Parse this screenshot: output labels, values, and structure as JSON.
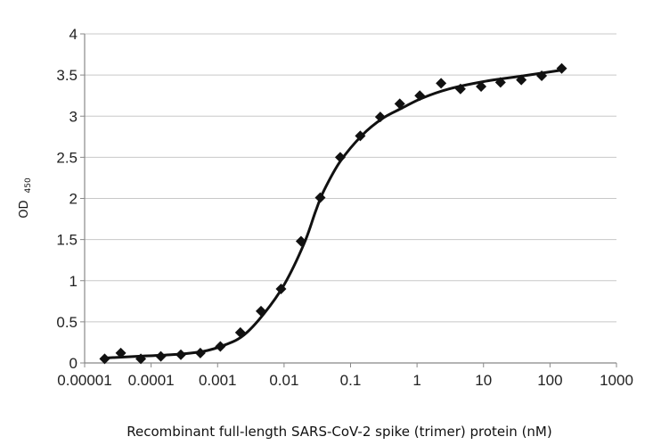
{
  "chart_data": {
    "type": "scatter",
    "title": "",
    "xlabel": "Recombinant full-length SARS-CoV-2 spike (trimer) protein (nM)",
    "ylabel": "OD",
    "ylabel_subscript": "450",
    "x_scale": "log",
    "xlim": [
      1e-05,
      1000
    ],
    "ylim": [
      0,
      4
    ],
    "x_ticks": [
      1e-05,
      0.0001,
      0.001,
      0.01,
      0.1,
      1,
      10,
      100,
      1000
    ],
    "x_tick_labels": [
      "0.00001",
      "0.0001",
      "0.001",
      "0.01",
      "0.1",
      "1",
      "10",
      "100",
      "1000"
    ],
    "y_ticks": [
      0,
      0.5,
      1,
      1.5,
      2,
      2.5,
      3,
      3.5,
      4
    ],
    "y_tick_labels": [
      "0",
      "0.5",
      "1",
      "1.5",
      "2",
      "2.5",
      "3",
      "3.5",
      "4"
    ],
    "grid": "horizontal",
    "marker": "diamond",
    "marker_color": "#111111",
    "curve_color": "#111111",
    "fit": "sigmoidal",
    "points": [
      {
        "x": 2e-05,
        "y": 0.05
      },
      {
        "x": 3.5e-05,
        "y": 0.12
      },
      {
        "x": 7e-05,
        "y": 0.05
      },
      {
        "x": 0.00014,
        "y": 0.08
      },
      {
        "x": 0.00028,
        "y": 0.1
      },
      {
        "x": 0.00055,
        "y": 0.12
      },
      {
        "x": 0.0011,
        "y": 0.2
      },
      {
        "x": 0.0022,
        "y": 0.37
      },
      {
        "x": 0.0045,
        "y": 0.63
      },
      {
        "x": 0.009,
        "y": 0.9
      },
      {
        "x": 0.018,
        "y": 1.48
      },
      {
        "x": 0.035,
        "y": 2.01
      },
      {
        "x": 0.07,
        "y": 2.5
      },
      {
        "x": 0.14,
        "y": 2.76
      },
      {
        "x": 0.28,
        "y": 2.99
      },
      {
        "x": 0.55,
        "y": 3.15
      },
      {
        "x": 1.1,
        "y": 3.25
      },
      {
        "x": 2.3,
        "y": 3.4
      },
      {
        "x": 4.5,
        "y": 3.33
      },
      {
        "x": 9.2,
        "y": 3.36
      },
      {
        "x": 18,
        "y": 3.41
      },
      {
        "x": 37,
        "y": 3.44
      },
      {
        "x": 75,
        "y": 3.49
      },
      {
        "x": 150,
        "y": 3.58
      }
    ],
    "curve": [
      {
        "x": 2e-05,
        "y": 0.06
      },
      {
        "x": 6e-05,
        "y": 0.08
      },
      {
        "x": 0.0002,
        "y": 0.1
      },
      {
        "x": 0.0006,
        "y": 0.14
      },
      {
        "x": 0.0013,
        "y": 0.22
      },
      {
        "x": 0.0025,
        "y": 0.34
      },
      {
        "x": 0.005,
        "y": 0.6
      },
      {
        "x": 0.01,
        "y": 0.95
      },
      {
        "x": 0.02,
        "y": 1.45
      },
      {
        "x": 0.03,
        "y": 1.85
      },
      {
        "x": 0.04,
        "y": 2.1
      },
      {
        "x": 0.07,
        "y": 2.45
      },
      {
        "x": 0.15,
        "y": 2.77
      },
      {
        "x": 0.3,
        "y": 2.97
      },
      {
        "x": 0.6,
        "y": 3.1
      },
      {
        "x": 1.2,
        "y": 3.22
      },
      {
        "x": 3,
        "y": 3.33
      },
      {
        "x": 10,
        "y": 3.42
      },
      {
        "x": 40,
        "y": 3.49
      },
      {
        "x": 150,
        "y": 3.56
      }
    ]
  }
}
